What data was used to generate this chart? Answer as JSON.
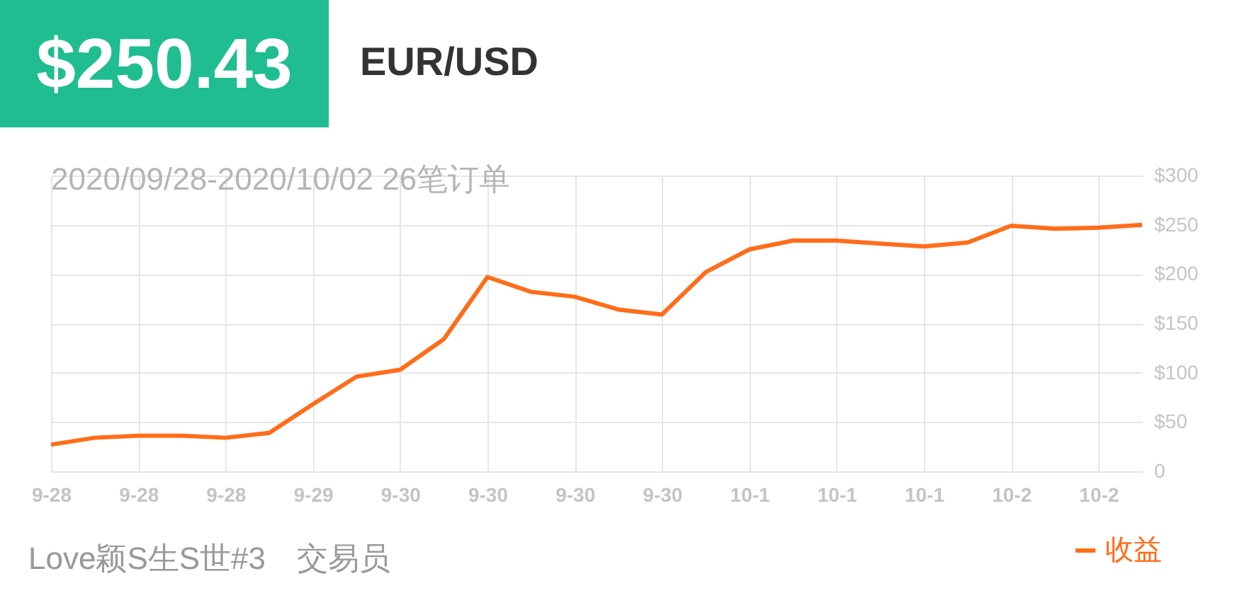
{
  "chart_data": {
    "type": "line",
    "title": "$250.43",
    "subtitle": "EUR/USD",
    "annotations": [
      "2020/09/28-2020/10/02 26笔订单",
      "Love颖S生S世#3　交易员"
    ],
    "categories": [
      "9-28",
      null,
      "9-28",
      null,
      "9-28",
      null,
      "9-29",
      null,
      "9-30",
      null,
      "9-30",
      null,
      "9-30",
      null,
      "9-30",
      null,
      "10-1",
      null,
      "10-1",
      null,
      "10-1",
      null,
      "10-2",
      null,
      "10-2",
      null
    ],
    "series": [
      {
        "name": "收益",
        "color": "#ff6d1a",
        "values": [
          27,
          34,
          36,
          36,
          34,
          39,
          68,
          96,
          103,
          134,
          197,
          182,
          177,
          164,
          159,
          202,
          225,
          234,
          234,
          231,
          228,
          232,
          249,
          246,
          247,
          250
        ]
      }
    ],
    "ylim": [
      0,
      300
    ],
    "yticks": [
      0,
      {
        "value": 50,
        "label": "$50"
      },
      {
        "value": 100,
        "label": "$100"
      },
      {
        "value": 150,
        "label": "$150"
      },
      {
        "value": 200,
        "label": "$200"
      },
      {
        "value": 250,
        "label": "$250"
      },
      {
        "value": 300,
        "label": "$300"
      }
    ],
    "grid": true,
    "legend": "bottom right",
    "marker": "none",
    "line_style": "solid"
  }
}
